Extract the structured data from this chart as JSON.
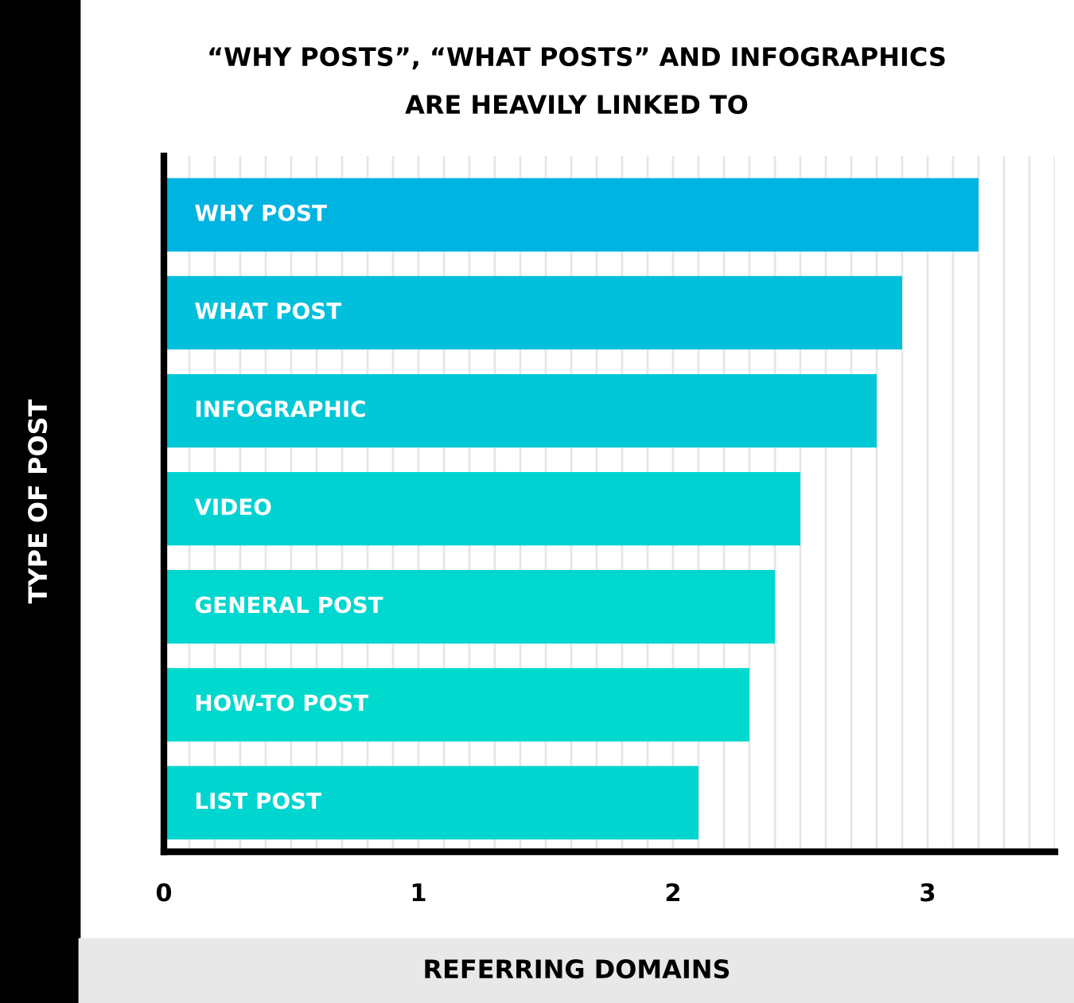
{
  "chart_data": {
    "type": "bar",
    "orientation": "horizontal",
    "title": "“WHY POSTS”, “WHAT POSTS” AND INFOGRAPHICS\nARE HEAVILY LINKED TO",
    "xlabel": "REFERRING DOMAINS",
    "ylabel": "TYPE OF POST",
    "categories": [
      "WHY POST",
      "WHAT POST",
      "INFOGRAPHIC",
      "VIDEO",
      "GENERAL POST",
      "HOW-TO POST",
      "LIST POST"
    ],
    "values": [
      3.2,
      2.9,
      2.8,
      2.5,
      2.4,
      2.3,
      2.1
    ],
    "colors": [
      "#00b4e2",
      "#00c0dc",
      "#00c8d7",
      "#00d2d2",
      "#00d7cf",
      "#00d9cd",
      "#00d5cf"
    ],
    "xlim": [
      0,
      3.5
    ],
    "xticks": [
      0,
      {
        "value": 0.1,
        "label": null
      },
      {
        "value": 0.2,
        "label": null
      },
      {
        "value": 0.3,
        "label": null
      },
      {
        "value": 0.4,
        "label": null
      },
      {
        "value": 0.5,
        "label": null
      },
      {
        "value": 0.6,
        "label": null
      },
      {
        "value": 0.7,
        "label": null
      },
      {
        "value": 0.8,
        "label": null
      },
      {
        "value": 0.9,
        "label": null
      },
      1,
      {
        "value": 1.1,
        "label": null
      },
      {
        "value": 1.2,
        "label": null
      },
      {
        "value": 1.3,
        "label": null
      },
      {
        "value": 1.4,
        "label": null
      },
      {
        "value": 1.5,
        "label": null
      },
      {
        "value": 1.6,
        "label": null
      },
      {
        "value": 1.7,
        "label": null
      },
      {
        "value": 1.8,
        "label": null
      },
      {
        "value": 1.9,
        "label": null
      },
      2,
      {
        "value": 2.1,
        "label": null
      },
      {
        "value": 2.2,
        "label": null
      },
      {
        "value": 2.3,
        "label": null
      },
      {
        "value": 2.4,
        "label": null
      },
      {
        "value": 2.5,
        "label": null
      },
      {
        "value": 2.6,
        "label": null
      },
      {
        "value": 2.7,
        "label": null
      },
      {
        "value": 2.8,
        "label": null
      },
      {
        "value": 2.9,
        "label": null
      },
      3,
      {
        "value": 3.1,
        "label": null
      },
      {
        "value": 3.2,
        "label": null
      },
      {
        "value": 3.3,
        "label": null
      },
      {
        "value": 3.4,
        "label": null
      },
      {
        "value": 3.5,
        "label": null
      }
    ],
    "grid": "x"
  }
}
